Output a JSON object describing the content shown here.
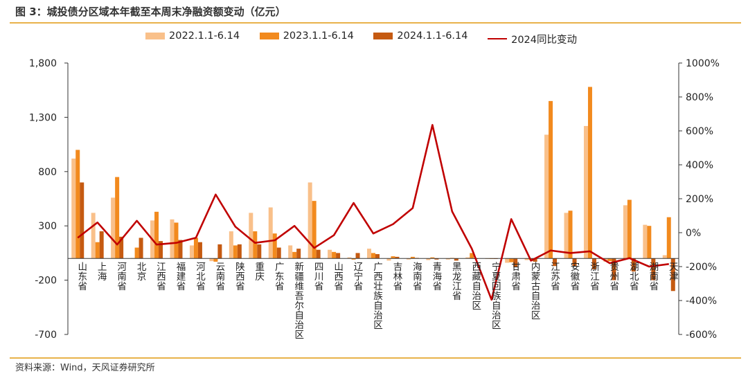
{
  "figure_title": "图 3：城投债分区域本年截至本周末净融资额变动（亿元）",
  "source_note": "资料来源：Wind，天风证券研究所",
  "colors": {
    "s2022": "#f9c08a",
    "s2023": "#f28a1e",
    "s2024": "#c55a11",
    "line": "#c00000",
    "axis": "#333333",
    "rule": "#e8b24a"
  },
  "chart_data": {
    "type": "bar",
    "title": "城投债分区域本年截至本周末净融资额变动（亿元）",
    "categories": [
      "山东省",
      "上海",
      "河南省",
      "北京",
      "江西省",
      "福建省",
      "河北省",
      "云南省",
      "陕西省",
      "重庆",
      "广东省",
      "新疆维吾尔自治区",
      "四川省",
      "山西省",
      "辽宁省",
      "广西壮族自治区",
      "吉林省",
      "海南省",
      "青海省",
      "黑龙江省",
      "西藏自治区",
      "宁夏回族自治区",
      "甘肃省",
      "内蒙古自治区",
      "江苏省",
      "安徽省",
      "浙江省",
      "贵州省",
      "湖北省",
      "湖南省",
      "天津"
    ],
    "series": [
      {
        "name": "2022.1.1-6.14",
        "axis": "left",
        "values": [
          920,
          420,
          560,
          5,
          350,
          360,
          120,
          -25,
          250,
          420,
          470,
          120,
          700,
          80,
          10,
          90,
          -20,
          -10,
          -15,
          -10,
          10,
          -5,
          -40,
          -15,
          1140,
          420,
          1220,
          -30,
          490,
          310,
          30
        ]
      },
      {
        "name": "2023.1.1-6.14",
        "axis": "left",
        "values": [
          1000,
          150,
          750,
          100,
          430,
          330,
          190,
          -30,
          120,
          250,
          230,
          60,
          530,
          60,
          -10,
          50,
          20,
          15,
          10,
          5,
          50,
          -5,
          -35,
          -10,
          1450,
          440,
          1580,
          -25,
          540,
          300,
          380
        ]
      },
      {
        "name": "2024.1.1-6.14",
        "axis": "left",
        "values": [
          700,
          250,
          200,
          190,
          160,
          170,
          150,
          130,
          130,
          130,
          100,
          90,
          80,
          50,
          50,
          40,
          15,
          5,
          -10,
          -20,
          -5,
          -5,
          -80,
          -30,
          -70,
          -70,
          -100,
          -200,
          -120,
          -200,
          -300
        ]
      },
      {
        "name": "2024同比变动",
        "type": "line",
        "axis": "right",
        "values": [
          -30,
          60,
          -70,
          70,
          -70,
          -60,
          -30,
          225,
          35,
          -60,
          -45,
          40,
          -90,
          -15,
          175,
          -5,
          50,
          145,
          635,
          125,
          -95,
          -395,
          80,
          -165,
          -105,
          -120,
          -110,
          -180,
          -150,
          -200,
          -185
        ]
      }
    ],
    "y_left": {
      "min": -700,
      "max": 1800,
      "ticks": [
        -700,
        -200,
        300,
        800,
        1300,
        1800
      ],
      "tick_labels": [
        "-700",
        "-200",
        "300",
        "800",
        "1,300",
        "1,800"
      ]
    },
    "y_right": {
      "min": -600,
      "max": 1000,
      "ticks": [
        -600,
        -400,
        -200,
        0,
        200,
        400,
        600,
        800,
        1000
      ],
      "tick_labels": [
        "-600%",
        "-400%",
        "-200%",
        "0%",
        "200%",
        "400%",
        "600%",
        "800%",
        "1000%"
      ]
    },
    "grid": false,
    "legend_position": "top"
  }
}
